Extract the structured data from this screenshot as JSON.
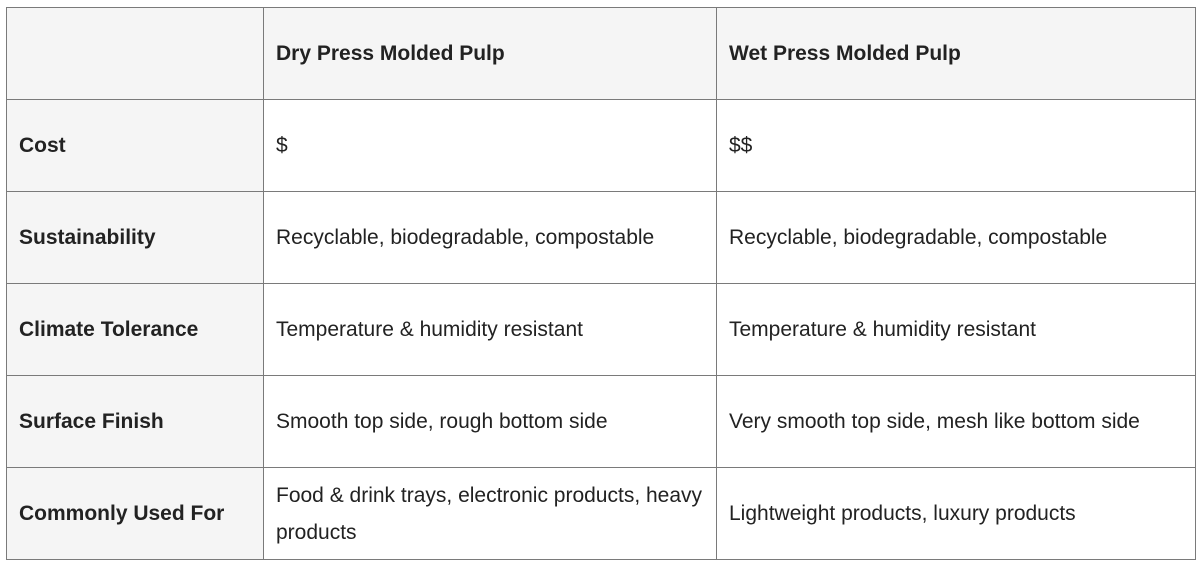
{
  "table": {
    "headers": [
      "",
      "Dry Press Molded Pulp",
      "Wet Press Molded Pulp"
    ],
    "rows": [
      {
        "label": "Cost",
        "dry": "$",
        "wet": "$$"
      },
      {
        "label": "Sustainability",
        "dry": "Recyclable, biodegradable, compostable",
        "wet": "Recyclable, biodegradable, compostable"
      },
      {
        "label": "Climate Tolerance",
        "dry": "Temperature & humidity resistant",
        "wet": "Temperature & humidity resistant"
      },
      {
        "label": "Surface Finish",
        "dry": "Smooth top side, rough bottom side",
        "wet": "Very smooth top side, mesh like bottom side"
      },
      {
        "label": "Commonly Used For",
        "dry": "Food & drink trays, electronic products, heavy products",
        "wet": "Lightweight products, luxury products"
      }
    ]
  }
}
